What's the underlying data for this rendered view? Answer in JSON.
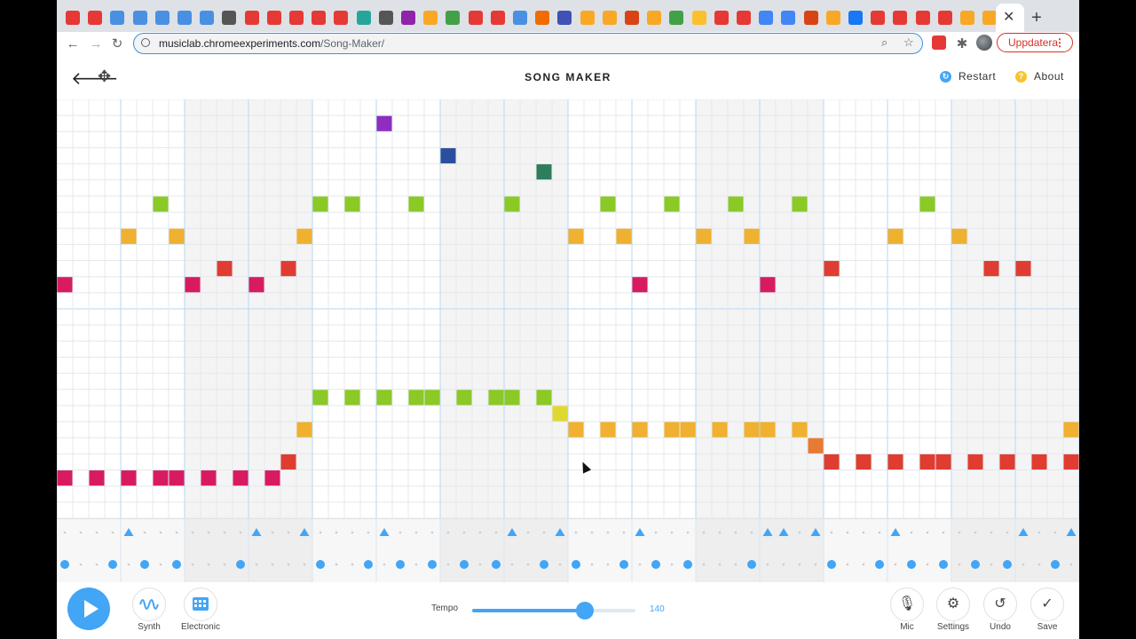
{
  "browser": {
    "tab_favicon_colors": [
      "#e53935",
      "#e53935",
      "#4a90e2",
      "#4a90e2",
      "#4a90e2",
      "#4a90e2",
      "#4a90e2",
      "#555555",
      "#e53935",
      "#e53935",
      "#e53935",
      "#e53935",
      "#e53935",
      "#26a69a",
      "#555555",
      "#8e24aa",
      "#f9a825",
      "#43a047",
      "#e53935",
      "#e53935",
      "#4a90e2",
      "#ef6c00",
      "#3f51b5",
      "#f9a825",
      "#f9a825",
      "#d84315",
      "#f9a825",
      "#43a047",
      "#fbc02d",
      "#e53935",
      "#e53935",
      "#4285f4",
      "#4285f4",
      "#d84315",
      "#f9a825",
      "#1877f2",
      "#e53935",
      "#e53935",
      "#e53935",
      "#e53935",
      "#f9a825",
      "#f9a825"
    ],
    "active_tab_close": "✕",
    "new_tab": "+",
    "url_host": "musiclab.chromeexperiments.com",
    "url_path": "/Song-Maker/",
    "update_label": "Uppdatera"
  },
  "header": {
    "title": "SONG MAKER",
    "restart_label": "Restart",
    "about_label": "About"
  },
  "chart_data": {
    "type": "table",
    "columns": 64,
    "melody_rows": 26,
    "notes": [
      {
        "col": 0,
        "row": 11,
        "color": "#d81b60"
      },
      {
        "col": 4,
        "row": 8,
        "color": "#f0b030"
      },
      {
        "col": 6,
        "row": 6,
        "color": "#8ac926"
      },
      {
        "col": 7,
        "row": 8,
        "color": "#f0b030"
      },
      {
        "col": 8,
        "row": 11,
        "color": "#d81b60"
      },
      {
        "col": 10,
        "row": 10,
        "color": "#e03c31"
      },
      {
        "col": 12,
        "row": 11,
        "color": "#d81b60"
      },
      {
        "col": 14,
        "row": 10,
        "color": "#e03c31"
      },
      {
        "col": 15,
        "row": 8,
        "color": "#f0b030"
      },
      {
        "col": 16,
        "row": 6,
        "color": "#8ac926"
      },
      {
        "col": 18,
        "row": 6,
        "color": "#8ac926"
      },
      {
        "col": 20,
        "row": 1,
        "color": "#8e2dbf"
      },
      {
        "col": 22,
        "row": 6,
        "color": "#8ac926"
      },
      {
        "col": 24,
        "row": 3,
        "color": "#2b4f9c"
      },
      {
        "col": 28,
        "row": 6,
        "color": "#8ac926"
      },
      {
        "col": 30,
        "row": 4,
        "color": "#2e7d5b"
      },
      {
        "col": 32,
        "row": 8,
        "color": "#f0b030"
      },
      {
        "col": 34,
        "row": 6,
        "color": "#8ac926"
      },
      {
        "col": 35,
        "row": 8,
        "color": "#f0b030"
      },
      {
        "col": 36,
        "row": 11,
        "color": "#d81b60"
      },
      {
        "col": 38,
        "row": 6,
        "color": "#8ac926"
      },
      {
        "col": 40,
        "row": 8,
        "color": "#f0b030"
      },
      {
        "col": 42,
        "row": 6,
        "color": "#8ac926"
      },
      {
        "col": 43,
        "row": 8,
        "color": "#f0b030"
      },
      {
        "col": 44,
        "row": 11,
        "color": "#d81b60"
      },
      {
        "col": 46,
        "row": 6,
        "color": "#8ac926"
      },
      {
        "col": 48,
        "row": 10,
        "color": "#e03c31"
      },
      {
        "col": 52,
        "row": 8,
        "color": "#f0b030"
      },
      {
        "col": 54,
        "row": 6,
        "color": "#8ac926"
      },
      {
        "col": 56,
        "row": 8,
        "color": "#f0b030"
      },
      {
        "col": 58,
        "row": 10,
        "color": "#e03c31"
      },
      {
        "col": 60,
        "row": 10,
        "color": "#e03c31"
      },
      {
        "col": 16,
        "row": 18,
        "color": "#8ac926"
      },
      {
        "col": 18,
        "row": 18,
        "color": "#8ac926"
      },
      {
        "col": 20,
        "row": 18,
        "color": "#8ac926"
      },
      {
        "col": 22,
        "row": 18,
        "color": "#8ac926"
      },
      {
        "col": 23,
        "row": 18,
        "color": "#8ac926"
      },
      {
        "col": 25,
        "row": 18,
        "color": "#8ac926"
      },
      {
        "col": 27,
        "row": 18,
        "color": "#8ac926"
      },
      {
        "col": 28,
        "row": 18,
        "color": "#8ac926"
      },
      {
        "col": 30,
        "row": 18,
        "color": "#8ac926"
      },
      {
        "col": 31,
        "row": 19,
        "color": "#dfd832"
      },
      {
        "col": 15,
        "row": 20,
        "color": "#f0b030"
      },
      {
        "col": 32,
        "row": 20,
        "color": "#f0b030"
      },
      {
        "col": 34,
        "row": 20,
        "color": "#f0b030"
      },
      {
        "col": 36,
        "row": 20,
        "color": "#f0b030"
      },
      {
        "col": 38,
        "row": 20,
        "color": "#f0b030"
      },
      {
        "col": 39,
        "row": 20,
        "color": "#f0b030"
      },
      {
        "col": 41,
        "row": 20,
        "color": "#f0b030"
      },
      {
        "col": 43,
        "row": 20,
        "color": "#f0b030"
      },
      {
        "col": 44,
        "row": 20,
        "color": "#f0b030"
      },
      {
        "col": 46,
        "row": 20,
        "color": "#f0b030"
      },
      {
        "col": 63,
        "row": 20,
        "color": "#f0b030"
      },
      {
        "col": 47,
        "row": 21,
        "color": "#e87a33"
      },
      {
        "col": 14,
        "row": 22,
        "color": "#e03c31"
      },
      {
        "col": 48,
        "row": 22,
        "color": "#e03c31"
      },
      {
        "col": 50,
        "row": 22,
        "color": "#e03c31"
      },
      {
        "col": 52,
        "row": 22,
        "color": "#e03c31"
      },
      {
        "col": 54,
        "row": 22,
        "color": "#e03c31"
      },
      {
        "col": 55,
        "row": 22,
        "color": "#e03c31"
      },
      {
        "col": 57,
        "row": 22,
        "color": "#e03c31"
      },
      {
        "col": 59,
        "row": 22,
        "color": "#e03c31"
      },
      {
        "col": 61,
        "row": 22,
        "color": "#e03c31"
      },
      {
        "col": 63,
        "row": 22,
        "color": "#e03c31"
      },
      {
        "col": 0,
        "row": 23,
        "color": "#d81b60"
      },
      {
        "col": 2,
        "row": 23,
        "color": "#d81b60"
      },
      {
        "col": 4,
        "row": 23,
        "color": "#d81b60"
      },
      {
        "col": 6,
        "row": 23,
        "color": "#d81b60"
      },
      {
        "col": 7,
        "row": 23,
        "color": "#d81b60"
      },
      {
        "col": 9,
        "row": 23,
        "color": "#d81b60"
      },
      {
        "col": 11,
        "row": 23,
        "color": "#d81b60"
      },
      {
        "col": 13,
        "row": 23,
        "color": "#d81b60"
      }
    ],
    "drum_triangles": [
      4,
      12,
      15,
      20,
      28,
      31,
      36,
      44,
      45,
      47,
      52,
      60,
      63
    ],
    "drum_circles": [
      0,
      3,
      5,
      7,
      11,
      16,
      19,
      21,
      23,
      25,
      27,
      30,
      32,
      35,
      37,
      39,
      43,
      48,
      51,
      53,
      55,
      57,
      59,
      62
    ],
    "color": "#42a5f5"
  },
  "controls": {
    "synth_label": "Synth",
    "electronic_label": "Electronic",
    "tempo_label": "Tempo",
    "tempo_value": "140",
    "tempo_fraction": 0.69,
    "mic_label": "Mic",
    "settings_label": "Settings",
    "undo_label": "Undo",
    "save_label": "Save"
  }
}
